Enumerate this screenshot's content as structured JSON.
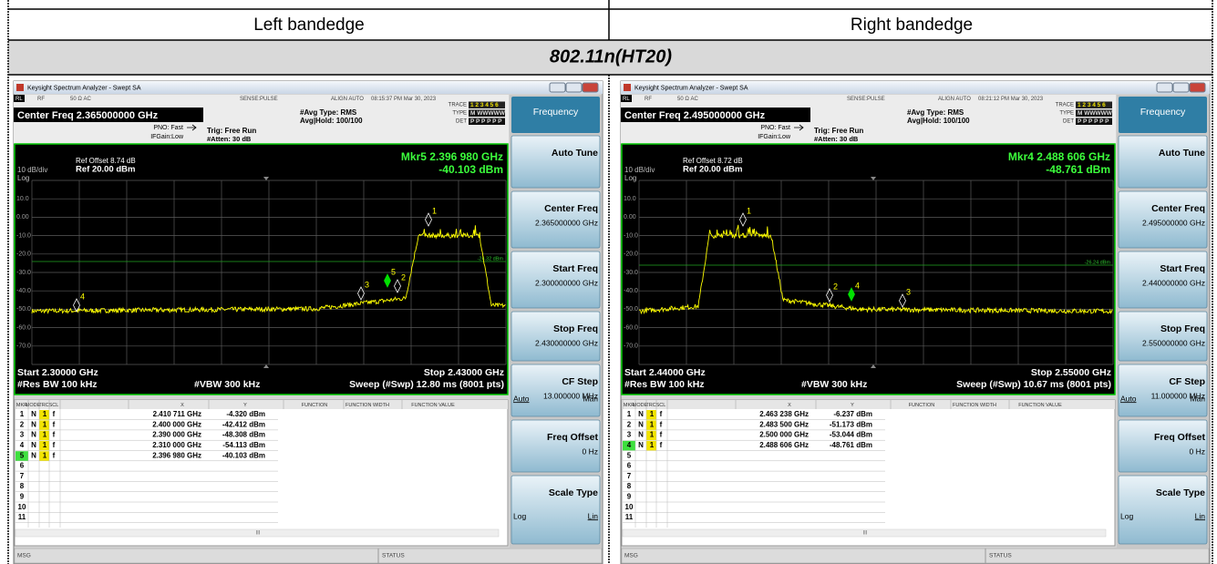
{
  "header": {
    "columns": [
      "Left bandedge",
      "Right bandedge"
    ],
    "mode": "802.11n(HT20)"
  },
  "screens": [
    {
      "window_title": "Keysight Spectrum Analyzer - Swept SA",
      "status": [
        "RL",
        "RF",
        "50 Ω  AC",
        "SENSE:PULSE",
        "ALIGN AUTO",
        "08:15:37 PM Mar 30, 2023"
      ],
      "center_freq": "Center Freq 2.365000000 GHz",
      "pno": "PNO: Fast",
      "if_gain": "IFGain:Low",
      "trig": "Trig: Free Run",
      "atten": "#Atten: 30 dB",
      "avg_type": "#Avg Type: RMS",
      "avg_hold": "Avg|Hold: 100/100",
      "trace_info": [
        [
          "TRACE",
          "1 2 3 4 5 6"
        ],
        [
          "TYPE",
          "M WWWWW"
        ],
        [
          "DET",
          "P P P P P P"
        ]
      ],
      "ref_offset": "Ref Offset 8.74 dB",
      "ref_level": "Ref 20.00 dBm",
      "scale": "10 dB/div",
      "scale_type": "Log",
      "marker_readout": [
        "Mkr5 2.396 980 GHz",
        "-40.103 dBm"
      ],
      "y_labels": [
        "10.0",
        "0.00",
        "-10.0",
        "-20.0",
        "-30.0",
        "-40.0",
        "-50.0",
        "-60.0",
        "-70.0"
      ],
      "display_line": "-24.32 dBm",
      "start": "Start 2.30000 GHz",
      "stop": "Stop 2.43000 GHz",
      "rbw": "#Res BW 100 kHz",
      "vbw": "#VBW 300 kHz",
      "sweep": "Sweep (#Swp)  12.80 ms (8001 pts)",
      "table_header": [
        "MKR",
        "MODE",
        "TRC",
        "SCL",
        "X",
        "Y",
        "FUNCTION",
        "FUNCTION WIDTH",
        "FUNCTION VALUE"
      ],
      "rows": [
        [
          "1",
          "N",
          "1",
          "f",
          "2.410 711 GHz",
          "-4.320 dBm"
        ],
        [
          "2",
          "N",
          "1",
          "f",
          "2.400 000 GHz",
          "-42.412 dBm"
        ],
        [
          "3",
          "N",
          "1",
          "f",
          "2.390 000 GHz",
          "-48.308 dBm"
        ],
        [
          "4",
          "N",
          "1",
          "f",
          "2.310 000 GHz",
          "-54.113 dBm"
        ],
        [
          "5",
          "N",
          "1",
          "f",
          "2.396 980 GHz",
          "-40.103 dBm"
        ],
        [
          "6"
        ],
        [
          "7"
        ],
        [
          "8"
        ],
        [
          "9"
        ],
        [
          "10"
        ],
        [
          "11"
        ]
      ],
      "scrollbar": "III",
      "msg": "MSG",
      "status_bar": "STATUS",
      "softkey_title": "Frequency",
      "softkeys": [
        {
          "label": "Auto Tune"
        },
        {
          "label": "Center Freq",
          "value": "2.365000000 GHz"
        },
        {
          "label": "Start Freq",
          "value": "2.300000000 GHz"
        },
        {
          "label": "Stop Freq",
          "value": "2.430000000 GHz"
        },
        {
          "label": "CF Step",
          "value": "13.000000 MHz",
          "options": [
            "Auto",
            "Man"
          ]
        },
        {
          "label": "Freq Offset",
          "value": "0 Hz"
        },
        {
          "label": "Scale Type",
          "options": [
            "Log",
            "Lin"
          ]
        }
      ]
    },
    {
      "window_title": "Keysight Spectrum Analyzer - Swept SA",
      "status": [
        "RL",
        "RF",
        "50 Ω  AC",
        "SENSE:PULSE",
        "ALIGN AUTO",
        "08:21:12 PM Mar 30, 2023"
      ],
      "center_freq": "Center Freq 2.495000000 GHz",
      "pno": "PNO: Fast",
      "if_gain": "IFGain:Low",
      "trig": "Trig: Free Run",
      "atten": "#Atten: 30 dB",
      "avg_type": "#Avg Type: RMS",
      "avg_hold": "Avg|Hold: 100/100",
      "trace_info": [
        [
          "TRACE",
          "1 2 3 4 5 6"
        ],
        [
          "TYPE",
          "M WWWWW"
        ],
        [
          "DET",
          "P P P P P P"
        ]
      ],
      "ref_offset": "Ref Offset 8.72 dB",
      "ref_level": "Ref 20.00 dBm",
      "scale": "10 dB/div",
      "scale_type": "Log",
      "marker_readout": [
        "Mkr4 2.488 606 GHz",
        "-48.761 dBm"
      ],
      "y_labels": [
        "10.0",
        "0.00",
        "-10.0",
        "-20.0",
        "-30.0",
        "-40.0",
        "-50.0",
        "-60.0",
        "-70.0"
      ],
      "display_line": "-26.24 dBm",
      "start": "Start 2.44000 GHz",
      "stop": "Stop 2.55000 GHz",
      "rbw": "#Res BW 100 kHz",
      "vbw": "#VBW 300 kHz",
      "sweep": "Sweep (#Swp)  10.67 ms (8001 pts)",
      "table_header": [
        "MKR",
        "MODE",
        "TRC",
        "SCL",
        "X",
        "Y",
        "FUNCTION",
        "FUNCTION WIDTH",
        "FUNCTION VALUE"
      ],
      "rows": [
        [
          "1",
          "N",
          "1",
          "f",
          "2.463 238 GHz",
          "-6.237 dBm"
        ],
        [
          "2",
          "N",
          "1",
          "f",
          "2.483 500 GHz",
          "-51.173 dBm"
        ],
        [
          "3",
          "N",
          "1",
          "f",
          "2.500 000 GHz",
          "-53.044 dBm"
        ],
        [
          "4",
          "N",
          "1",
          "f",
          "2.488 606 GHz",
          "-48.761 dBm"
        ],
        [
          "5"
        ],
        [
          "6"
        ],
        [
          "7"
        ],
        [
          "8"
        ],
        [
          "9"
        ],
        [
          "10"
        ],
        [
          "11"
        ]
      ],
      "scrollbar": "III",
      "msg": "MSG",
      "status_bar": "STATUS",
      "softkey_title": "Frequency",
      "softkeys": [
        {
          "label": "Auto Tune"
        },
        {
          "label": "Center Freq",
          "value": "2.495000000 GHz"
        },
        {
          "label": "Start Freq",
          "value": "2.440000000 GHz"
        },
        {
          "label": "Stop Freq",
          "value": "2.550000000 GHz"
        },
        {
          "label": "CF Step",
          "value": "11.000000 MHz",
          "options": [
            "Auto",
            "Man"
          ]
        },
        {
          "label": "Freq Offset",
          "value": "0 Hz"
        },
        {
          "label": "Scale Type",
          "options": [
            "Log",
            "Lin"
          ]
        }
      ]
    }
  ]
}
